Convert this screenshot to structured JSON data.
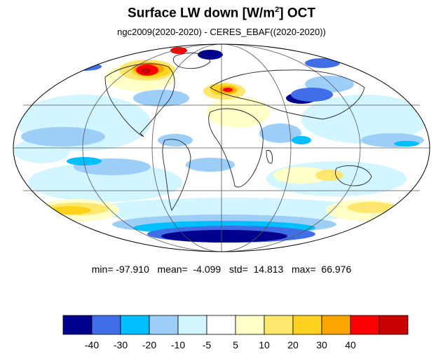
{
  "header": {
    "title_main": "Surface LW down [W/m",
    "title_sup": "2",
    "title_end": "]  OCT",
    "subtitle": "ngc2009(2020-2020) - CERES_EBAF((2020-2020))"
  },
  "stats": {
    "text": "min= -97.910   mean=  -4.099   std=  14.813   max=  66.976"
  },
  "colorbar": {
    "colors": [
      "#00008f",
      "#3f6ee6",
      "#00bfff",
      "#9ccef7",
      "#d2f5ff",
      "#ffffff",
      "#ffffc8",
      "#ffe66e",
      "#ffd21e",
      "#ffa500",
      "#ff0000",
      "#c80000"
    ],
    "labels": [
      "-40",
      "-30",
      "-20",
      "-10",
      "-5",
      "5",
      "10",
      "20",
      "30",
      "40"
    ]
  }
}
